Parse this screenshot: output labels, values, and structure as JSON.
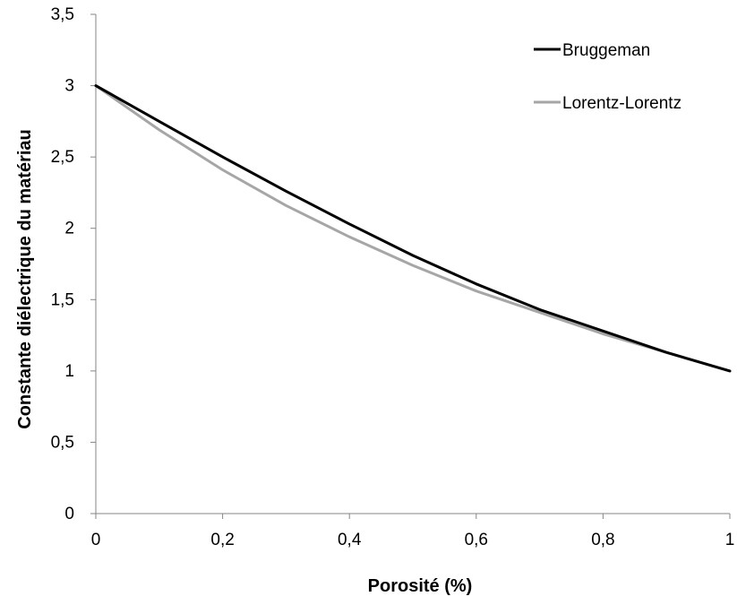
{
  "chart_data": {
    "type": "line",
    "xlabel": "Porosité (%)",
    "ylabel": "Constante diélectrique du matériau",
    "xlim": [
      0,
      1
    ],
    "ylim": [
      0,
      3.5
    ],
    "x_ticks": [
      0,
      0.2,
      0.4,
      0.6,
      0.8,
      1
    ],
    "x_tick_labels": [
      "0",
      "0,2",
      "0,4",
      "0,6",
      "0,8",
      "1"
    ],
    "y_ticks": [
      0,
      0.5,
      1,
      1.5,
      2,
      2.5,
      3,
      3.5
    ],
    "y_tick_labels": [
      "0",
      "0,5",
      "1",
      "1,5",
      "2",
      "2,5",
      "3",
      "3,5"
    ],
    "grid": false,
    "legend_position": "top-right",
    "x": [
      0,
      0.1,
      0.2,
      0.3,
      0.4,
      0.5,
      0.6,
      0.7,
      0.8,
      0.9,
      1
    ],
    "series": [
      {
        "name": "Bruggeman",
        "color": "#000000",
        "values": [
          3.0,
          2.75,
          2.5,
          2.26,
          2.03,
          1.81,
          1.61,
          1.43,
          1.28,
          1.13,
          1.0
        ]
      },
      {
        "name": "Lorentz-Lorentz",
        "color": "#a6a6a6",
        "values": [
          3.0,
          2.69,
          2.41,
          2.16,
          1.94,
          1.74,
          1.56,
          1.41,
          1.26,
          1.13,
          1.0
        ]
      }
    ]
  }
}
